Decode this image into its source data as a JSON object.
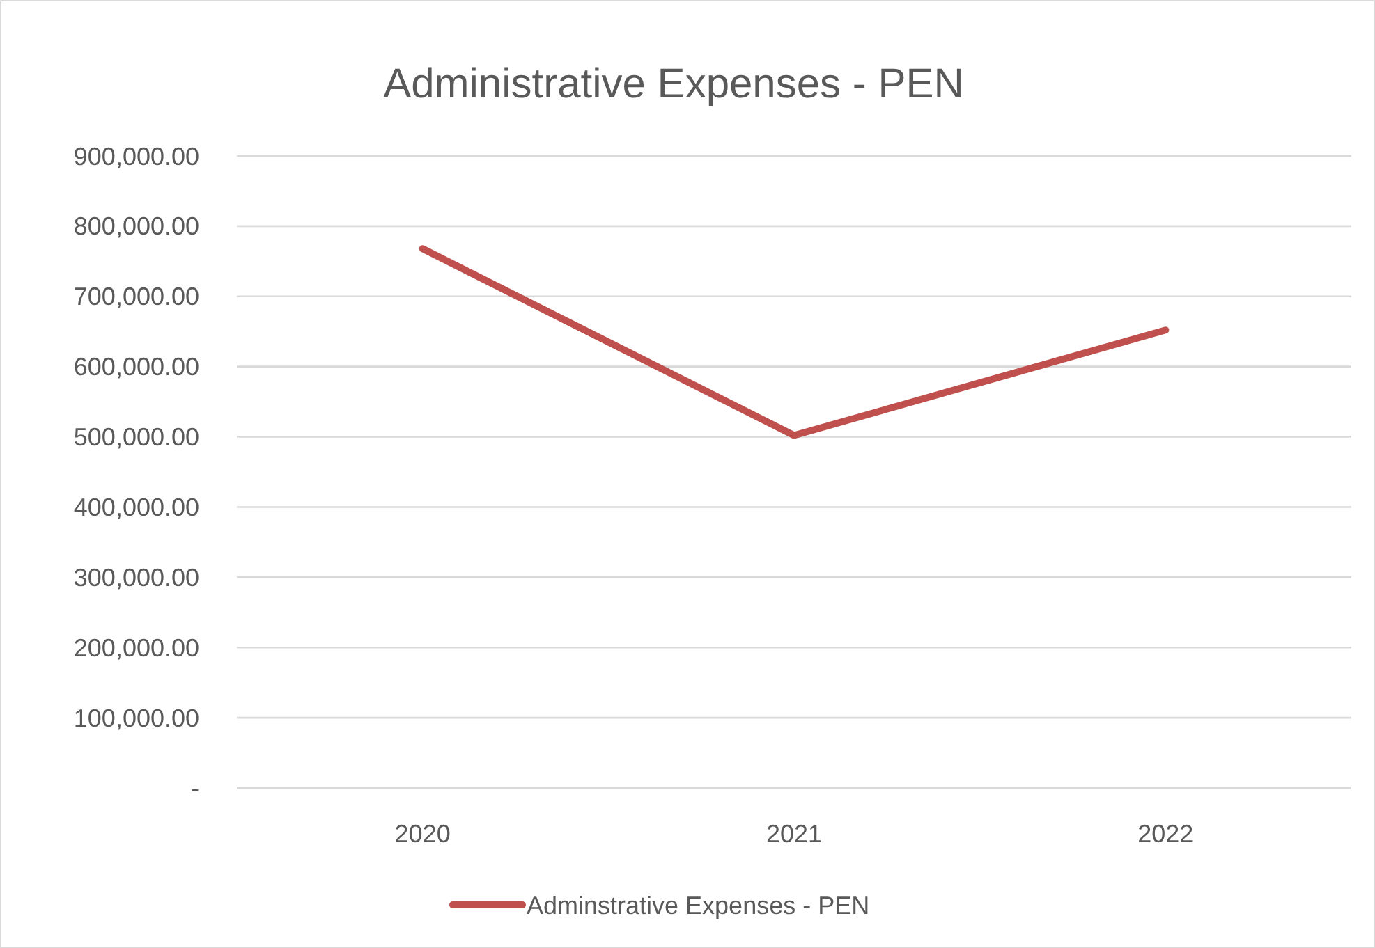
{
  "chart_data": {
    "type": "line",
    "title": "Administrative Expenses - PEN",
    "categories": [
      "2020",
      "2021",
      "2022"
    ],
    "series": [
      {
        "name": "Adminstrative Expenses - PEN",
        "color": "#c0504d",
        "values": [
          768000,
          502000,
          652000
        ]
      }
    ],
    "ylim": [
      0,
      900000
    ],
    "yticks": [
      {
        "value": 0,
        "label": "-"
      },
      {
        "value": 100000,
        "label": "100,000.00"
      },
      {
        "value": 200000,
        "label": "200,000.00"
      },
      {
        "value": 300000,
        "label": "300,000.00"
      },
      {
        "value": 400000,
        "label": "400,000.00"
      },
      {
        "value": 500000,
        "label": "500,000.00"
      },
      {
        "value": 600000,
        "label": "600,000.00"
      },
      {
        "value": 700000,
        "label": "700,000.00"
      },
      {
        "value": 800000,
        "label": "800,000.00"
      },
      {
        "value": 900000,
        "label": "900,000.00"
      }
    ],
    "grid": "y",
    "legend": "bottom",
    "marker": "none",
    "line_style": "solid"
  }
}
